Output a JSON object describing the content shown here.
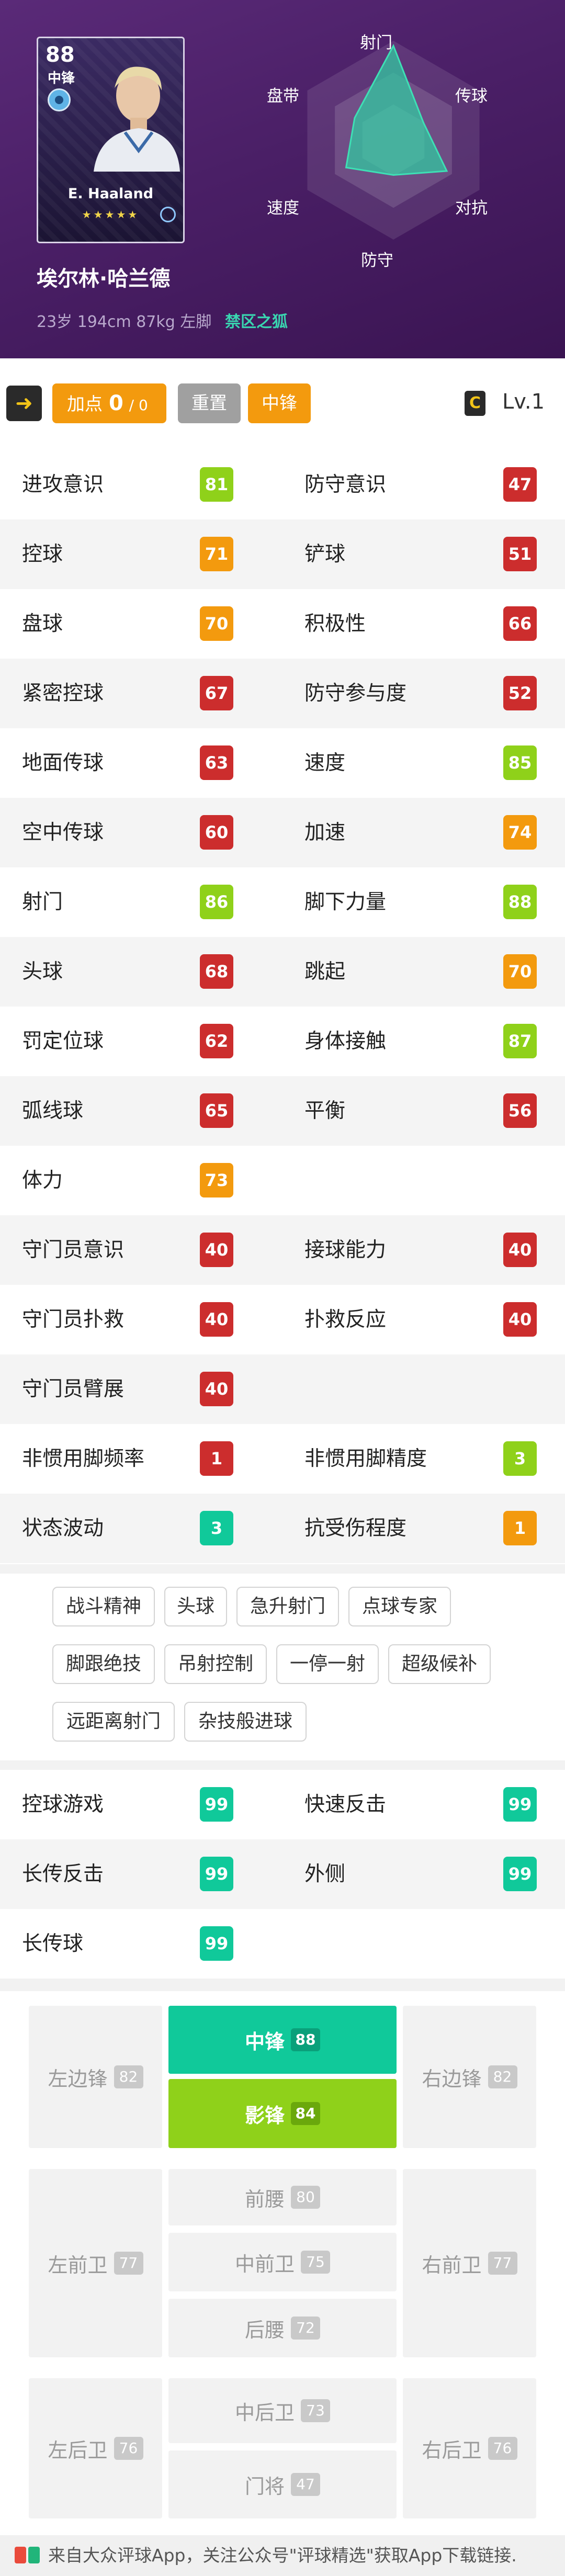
{
  "colors": {
    "header_bg": "#4a1f66",
    "accent_green": "#10c99a",
    "orange": "#f39a0e",
    "red": "#cc2d2d",
    "lime": "#8fd11a"
  },
  "card": {
    "rating": "88",
    "position": "中锋",
    "name": "E. Haaland",
    "stars": "★★★★★"
  },
  "player": {
    "name": "埃尔林·哈兰德",
    "info": "23岁 194cm 87kg 左脚",
    "title": "禁区之狐"
  },
  "radar": {
    "labels": [
      "射门",
      "传球",
      "对抗",
      "防守",
      "速度",
      "盘带"
    ],
    "values": [
      0.95,
      0.35,
      0.62,
      0.35,
      0.55,
      0.45
    ]
  },
  "toolbar": {
    "add_label": "加点",
    "add_value": "0",
    "add_max": "/ 0",
    "reset_label": "重置",
    "position_label": "中锋",
    "level_icon": "C",
    "level": "Lv.1"
  },
  "stats": [
    {
      "left": {
        "name": "进攻意识",
        "value": "81",
        "color": "#8fd11a"
      },
      "right": {
        "name": "防守意识",
        "value": "47",
        "color": "#cc2d2d"
      }
    },
    {
      "left": {
        "name": "控球",
        "value": "71",
        "color": "#f39a0e"
      },
      "right": {
        "name": "铲球",
        "value": "51",
        "color": "#cc2d2d"
      }
    },
    {
      "left": {
        "name": "盘球",
        "value": "70",
        "color": "#f39a0e"
      },
      "right": {
        "name": "积极性",
        "value": "66",
        "color": "#cc2d2d"
      }
    },
    {
      "left": {
        "name": "紧密控球",
        "value": "67",
        "color": "#cc2d2d"
      },
      "right": {
        "name": "防守参与度",
        "value": "52",
        "color": "#cc2d2d"
      }
    },
    {
      "left": {
        "name": "地面传球",
        "value": "63",
        "color": "#cc2d2d"
      },
      "right": {
        "name": "速度",
        "value": "85",
        "color": "#8fd11a"
      }
    },
    {
      "left": {
        "name": "空中传球",
        "value": "60",
        "color": "#cc2d2d"
      },
      "right": {
        "name": "加速",
        "value": "74",
        "color": "#f39a0e"
      }
    },
    {
      "left": {
        "name": "射门",
        "value": "86",
        "color": "#8fd11a"
      },
      "right": {
        "name": "脚下力量",
        "value": "88",
        "color": "#8fd11a"
      }
    },
    {
      "left": {
        "name": "头球",
        "value": "68",
        "color": "#cc2d2d"
      },
      "right": {
        "name": "跳起",
        "value": "70",
        "color": "#f39a0e"
      }
    },
    {
      "left": {
        "name": "罚定位球",
        "value": "62",
        "color": "#cc2d2d"
      },
      "right": {
        "name": "身体接触",
        "value": "87",
        "color": "#8fd11a"
      }
    },
    {
      "left": {
        "name": "弧线球",
        "value": "65",
        "color": "#cc2d2d"
      },
      "right": {
        "name": "平衡",
        "value": "56",
        "color": "#cc2d2d"
      }
    },
    {
      "left": {
        "name": "体力",
        "value": "73",
        "color": "#f39a0e"
      },
      "right": null
    },
    {
      "left": {
        "name": "守门员意识",
        "value": "40",
        "color": "#cc2d2d"
      },
      "right": {
        "name": "接球能力",
        "value": "40",
        "color": "#cc2d2d"
      }
    },
    {
      "left": {
        "name": "守门员扑救",
        "value": "40",
        "color": "#cc2d2d"
      },
      "right": {
        "name": "扑救反应",
        "value": "40",
        "color": "#cc2d2d"
      }
    },
    {
      "left": {
        "name": "守门员臂展",
        "value": "40",
        "color": "#cc2d2d"
      },
      "right": null
    },
    {
      "left": {
        "name": "非惯用脚频率",
        "value": "1",
        "color": "#cc2d2d"
      },
      "right": {
        "name": "非惯用脚精度",
        "value": "3",
        "color": "#8fd11a"
      }
    },
    {
      "left": {
        "name": "状态波动",
        "value": "3",
        "color": "#10c99a"
      },
      "right": {
        "name": "抗受伤程度",
        "value": "1",
        "color": "#f39a0e"
      }
    }
  ],
  "skills": [
    [
      "战斗精神",
      "头球",
      "急升射门",
      "点球专家"
    ],
    [
      "脚跟绝技",
      "吊射控制",
      "一停一射",
      "超级候补"
    ],
    [
      "远距离射门",
      "杂技般进球"
    ]
  ],
  "ai_styles": [
    {
      "left": {
        "name": "控球游戏",
        "value": "99",
        "color": "#10c99a"
      },
      "right": {
        "name": "快速反击",
        "value": "99",
        "color": "#10c99a"
      }
    },
    {
      "left": {
        "name": "长传反击",
        "value": "99",
        "color": "#10c99a"
      },
      "right": {
        "name": "外侧",
        "value": "99",
        "color": "#10c99a"
      }
    },
    {
      "left": {
        "name": "长传球",
        "value": "99",
        "color": "#10c99a"
      },
      "right": null
    }
  ],
  "positions": {
    "lwf": {
      "name": "左边锋",
      "value": "82"
    },
    "cf": {
      "name": "中锋",
      "value": "88"
    },
    "ss": {
      "name": "影锋",
      "value": "84"
    },
    "rwf": {
      "name": "右边锋",
      "value": "82"
    },
    "lmf": {
      "name": "左前卫",
      "value": "77"
    },
    "amf": {
      "name": "前腰",
      "value": "80"
    },
    "cmf": {
      "name": "中前卫",
      "value": "75"
    },
    "dmf": {
      "name": "后腰",
      "value": "72"
    },
    "rmf": {
      "name": "右前卫",
      "value": "77"
    },
    "lb": {
      "name": "左后卫",
      "value": "76"
    },
    "cb": {
      "name": "中后卫",
      "value": "73"
    },
    "gk": {
      "name": "门将",
      "value": "47"
    },
    "rb": {
      "name": "右后卫",
      "value": "76"
    }
  },
  "footer": {
    "text": "来自大众评球App，关注公众号\"评球精选\"获取App下载链接."
  }
}
